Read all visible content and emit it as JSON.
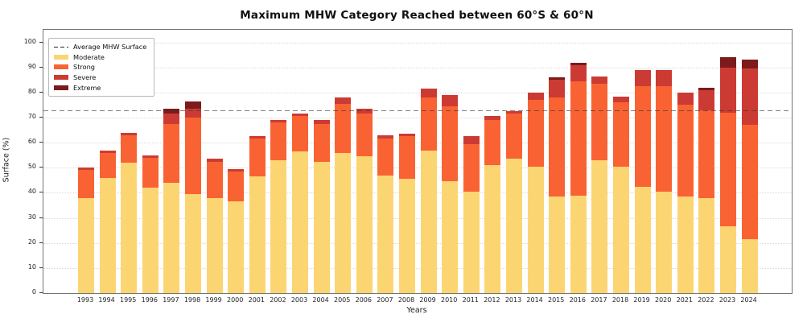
{
  "chart_data": {
    "type": "bar",
    "stacked": true,
    "title": "Maximum MHW Category Reached between 60°S & 60°N",
    "xlabel": "Years",
    "ylabel": "Surface (%)",
    "ylim": [
      0,
      105
    ],
    "yticks": [
      0,
      10,
      20,
      30,
      40,
      50,
      60,
      70,
      80,
      90,
      100
    ],
    "grid": "horizontal-dotted",
    "legend_position": "upper-left",
    "categories": [
      "1993",
      "1994",
      "1995",
      "1996",
      "1997",
      "1998",
      "1999",
      "2000",
      "2001",
      "2002",
      "2003",
      "2004",
      "2005",
      "2006",
      "2007",
      "2008",
      "2009",
      "2010",
      "2011",
      "2012",
      "2013",
      "2014",
      "2015",
      "2016",
      "2017",
      "2018",
      "2019",
      "2020",
      "2021",
      "2022",
      "2023",
      "2024"
    ],
    "series": [
      {
        "name": "Moderate",
        "color": "#FCD573",
        "values": [
          38,
          46,
          52,
          42,
          44,
          39.5,
          38,
          36.5,
          46.5,
          53,
          56.5,
          52.5,
          56,
          54.5,
          47,
          45.5,
          57,
          44.5,
          40.5,
          51,
          53.5,
          50.5,
          38.5,
          39,
          53,
          50.5,
          42.5,
          40.5,
          38.5,
          38,
          26.5,
          21.5
        ]
      },
      {
        "name": "Strong",
        "color": "#F96333",
        "values": [
          11,
          10,
          11,
          12,
          23.5,
          30.5,
          14.5,
          12,
          15,
          15,
          14,
          15,
          19.5,
          17,
          14.5,
          17,
          21,
          30,
          19,
          18,
          18,
          26.5,
          39.5,
          45.5,
          30.5,
          25.5,
          40,
          42,
          36.5,
          35,
          45.5,
          45.5
        ]
      },
      {
        "name": "Severe",
        "color": "#CC3B33",
        "values": [
          1,
          1,
          1,
          1,
          4,
          3.5,
          1,
          1,
          1,
          1,
          1,
          1.5,
          2.5,
          2,
          1.5,
          1,
          3.5,
          4.5,
          3,
          1.5,
          1,
          3,
          7,
          6.5,
          3,
          2.5,
          6.5,
          6.5,
          5,
          8,
          18,
          22.5
        ]
      },
      {
        "name": "Extreme",
        "color": "#7C1A1D",
        "values": [
          0,
          0,
          0,
          0,
          2,
          3,
          0,
          0,
          0,
          0,
          0,
          0,
          0,
          0,
          0,
          0,
          0,
          0,
          0,
          0,
          0,
          0,
          1,
          1,
          0,
          0,
          0,
          0,
          0,
          1,
          4,
          3.5
        ]
      }
    ],
    "average_line": {
      "label": "Average MHW Surface",
      "value": 73,
      "style": "dashed",
      "color": "#333333"
    }
  },
  "colors": {
    "background": "#FFFFFF",
    "grid": "#D8D8D8",
    "spine": "#757575",
    "text": "#1A1A1A"
  }
}
